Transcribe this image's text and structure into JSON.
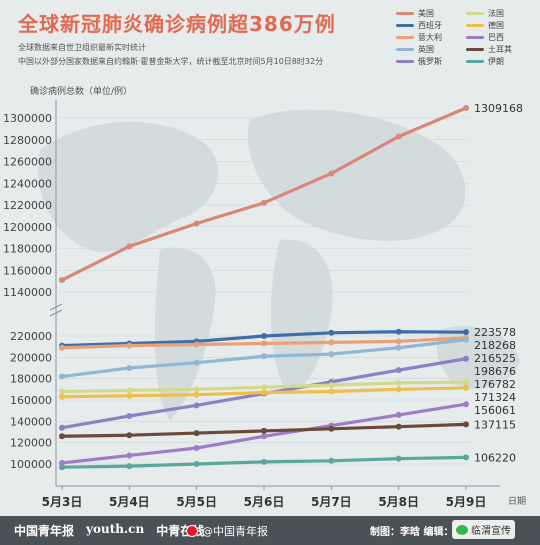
{
  "header": {
    "title": "全球新冠肺炎确诊病例超386万例",
    "source_line1": "全球数据来自世卫组织最新实时统计",
    "source_line2": "中国以外部分国家数据来自约翰斯·霍普金斯大学，统计截至北京时间5月10日8时32分",
    "ylabel": "确诊病例总数（单位/例）",
    "xunit": "日期"
  },
  "footer": {
    "logo1": "中国青年报",
    "logo2": "youth.cn",
    "logo3": "中青在线",
    "weibo": "@中国青年报",
    "credit": "制图：李晗  编辑：马子倩",
    "wechat": "临渭宣传"
  },
  "chart_data": {
    "type": "line",
    "x": [
      "5月3日",
      "5月4日",
      "5月5日",
      "5月6日",
      "5月7日",
      "5月8日",
      "5月9日"
    ],
    "upper_yticks": [
      1300000,
      1280000,
      1260000,
      1240000,
      1220000,
      1200000,
      1180000,
      1160000,
      1140000
    ],
    "lower_yticks": [
      220000,
      200000,
      180000,
      160000,
      140000,
      120000,
      100000
    ],
    "upper_range": [
      1140000,
      1300000
    ],
    "lower_range": [
      100000,
      220000
    ],
    "legend_placement": "top-right",
    "series": [
      {
        "name": "美国",
        "color": "#d98778",
        "axis": "upper",
        "values": [
          1151000,
          1182000,
          1203000,
          1222000,
          1249000,
          1283000,
          1309168
        ],
        "end_label": "1309168"
      },
      {
        "name": "西班牙",
        "color": "#3e6fa8",
        "axis": "lower",
        "values": [
          211000,
          213000,
          215000,
          220000,
          223000,
          224000,
          223578
        ],
        "end_label": "223578"
      },
      {
        "name": "意大利",
        "color": "#eaa17a",
        "axis": "lower",
        "values": [
          209000,
          211000,
          212000,
          213000,
          214000,
          215000,
          218268
        ],
        "end_label": "218268"
      },
      {
        "name": "英国",
        "color": "#90b7d4",
        "axis": "lower",
        "values": [
          182000,
          190000,
          195000,
          201000,
          203000,
          209000,
          216525
        ],
        "end_label": "216525"
      },
      {
        "name": "俄罗斯",
        "color": "#8a82c4",
        "axis": "lower",
        "values": [
          134000,
          145000,
          155000,
          166000,
          177000,
          188000,
          198676
        ],
        "end_label": "198676"
      },
      {
        "name": "法国",
        "color": "#d4d98a",
        "axis": "lower",
        "values": [
          168000,
          169000,
          170000,
          172000,
          174000,
          176000,
          176782
        ],
        "end_label": "176782"
      },
      {
        "name": "德国",
        "color": "#efc049",
        "axis": "lower",
        "values": [
          163000,
          164000,
          165000,
          167000,
          168000,
          170000,
          171324
        ],
        "end_label": "171324"
      },
      {
        "name": "巴西",
        "color": "#a07cc8",
        "axis": "lower",
        "values": [
          101000,
          108000,
          115000,
          126000,
          136000,
          146000,
          156061
        ],
        "end_label": "156061"
      },
      {
        "name": "土耳其",
        "color": "#6b4a3c",
        "axis": "lower",
        "values": [
          126000,
          127000,
          129000,
          131000,
          133000,
          135000,
          137115
        ],
        "end_label": "137115"
      },
      {
        "name": "伊朗",
        "color": "#5aa89c",
        "axis": "lower",
        "values": [
          97000,
          98000,
          100000,
          102000,
          103000,
          105000,
          106220
        ],
        "end_label": "106220"
      }
    ]
  },
  "legend": [
    {
      "name": "美国",
      "color": "#d98778"
    },
    {
      "name": "法国",
      "color": "#d4d98a"
    },
    {
      "name": "西班牙",
      "color": "#3e6fa8"
    },
    {
      "name": "德国",
      "color": "#efc049"
    },
    {
      "name": "意大利",
      "color": "#eaa17a"
    },
    {
      "name": "巴西",
      "color": "#a07cc8"
    },
    {
      "name": "英国",
      "color": "#90b7d4"
    },
    {
      "name": "土耳其",
      "color": "#6b4a3c"
    },
    {
      "name": "俄罗斯",
      "color": "#8a82c4"
    },
    {
      "name": "伊朗",
      "color": "#5aa89c"
    }
  ]
}
